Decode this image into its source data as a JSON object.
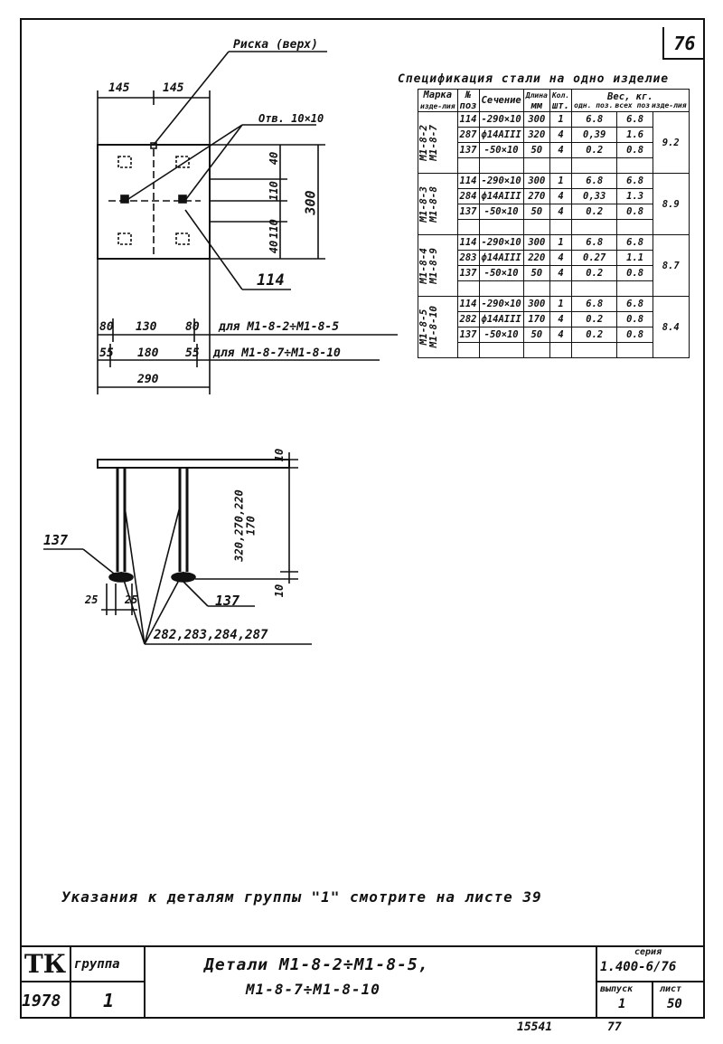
{
  "sheet_corner": "76",
  "plan": {
    "riser_label": "Риска (верх)",
    "hole_label": "Отв. 10×10",
    "dim_top_left": "145",
    "dim_top_right": "145",
    "dim_right_1": "40",
    "dim_right_2": "110",
    "dim_right_3": "110",
    "dim_right_4": "40",
    "dim_right_total": "300",
    "part_no": "114",
    "row1": {
      "a": "80",
      "b": "130",
      "c": "80",
      "note": "для М1-8-2÷М1-8-5"
    },
    "row2": {
      "a": "55",
      "b": "180",
      "c": "55",
      "note": "для М1-8-7÷М1-8-10"
    },
    "total_width": "290"
  },
  "elevation": {
    "dim_top": "10",
    "dim_height": "320,270,220\n170",
    "dim_bottom": "10",
    "left_part": "137",
    "right_part": "137",
    "dim_a": "25",
    "dim_b": "25",
    "bars_label": "282,283,284,287"
  },
  "spec": {
    "title": "Спецификация стали на одно изделие",
    "headers": {
      "mark_1": "Марка",
      "mark_2": "изде-лия",
      "pos_1": "№",
      "pos_2": "поз",
      "section": "Сечение",
      "length_1": "Длина",
      "length_2": "мм",
      "qty_1": "Кол.",
      "qty_2": "шт.",
      "weight": "Вес, кг.",
      "w_unit": "одн. поз.",
      "w_all": "всех поз",
      "w_item": "изде-лия"
    },
    "groups": [
      {
        "mark": "М1-8-2\nМ1-8-7",
        "total": "9.2",
        "rows": [
          {
            "pos": "114",
            "section": "-290×10",
            "length": "300",
            "qty": "1",
            "w1": "6.8",
            "w2": "6.8"
          },
          {
            "pos": "287",
            "section": "ф14АIII",
            "length": "320",
            "qty": "4",
            "w1": "0,39",
            "w2": "1.6"
          },
          {
            "pos": "137",
            "section": "-50×10",
            "length": "50",
            "qty": "4",
            "w1": "0.2",
            "w2": "0.8"
          }
        ]
      },
      {
        "mark": "М1-8-3\nМ1-8-8",
        "total": "8.9",
        "rows": [
          {
            "pos": "114",
            "section": "-290×10",
            "length": "300",
            "qty": "1",
            "w1": "6.8",
            "w2": "6.8"
          },
          {
            "pos": "284",
            "section": "ф14АIII",
            "length": "270",
            "qty": "4",
            "w1": "0,33",
            "w2": "1.3"
          },
          {
            "pos": "137",
            "section": "-50×10",
            "length": "50",
            "qty": "4",
            "w1": "0.2",
            "w2": "0.8"
          }
        ]
      },
      {
        "mark": "М1-8-4\nМ1-8-9",
        "total": "8.7",
        "rows": [
          {
            "pos": "114",
            "section": "-290×10",
            "length": "300",
            "qty": "1",
            "w1": "6.8",
            "w2": "6.8"
          },
          {
            "pos": "283",
            "section": "ф14АIII",
            "length": "220",
            "qty": "4",
            "w1": "0.27",
            "w2": "1.1"
          },
          {
            "pos": "137",
            "section": "-50×10",
            "length": "50",
            "qty": "4",
            "w1": "0.2",
            "w2": "0.8"
          }
        ]
      },
      {
        "mark": "М1-8-5\nМ1-8-10",
        "total": "8.4",
        "rows": [
          {
            "pos": "114",
            "section": "-290×10",
            "length": "300",
            "qty": "1",
            "w1": "6.8",
            "w2": "6.8"
          },
          {
            "pos": "282",
            "section": "ф14АIII",
            "length": "170",
            "qty": "4",
            "w1": "0.2",
            "w2": "0.8"
          },
          {
            "pos": "137",
            "section": "-50×10",
            "length": "50",
            "qty": "4",
            "w1": "0.2",
            "w2": "0.8"
          }
        ]
      }
    ]
  },
  "note": "Указания к деталям группы \"1\" смотрите на листе 39",
  "stamp": {
    "tk": "ТК",
    "group_label": "группа",
    "year": "1978",
    "group_no": "1",
    "title_1": "Детали М1-8-2÷М1-8-5,",
    "title_2": "М1-8-7÷М1-8-10",
    "series_label": "серия",
    "series_value": "1.400-6/76",
    "issue_label": "выпуск",
    "issue_value": "1",
    "sheet_label": "лист",
    "sheet_value": "50"
  },
  "footer": {
    "left": "15541",
    "right": "77"
  }
}
